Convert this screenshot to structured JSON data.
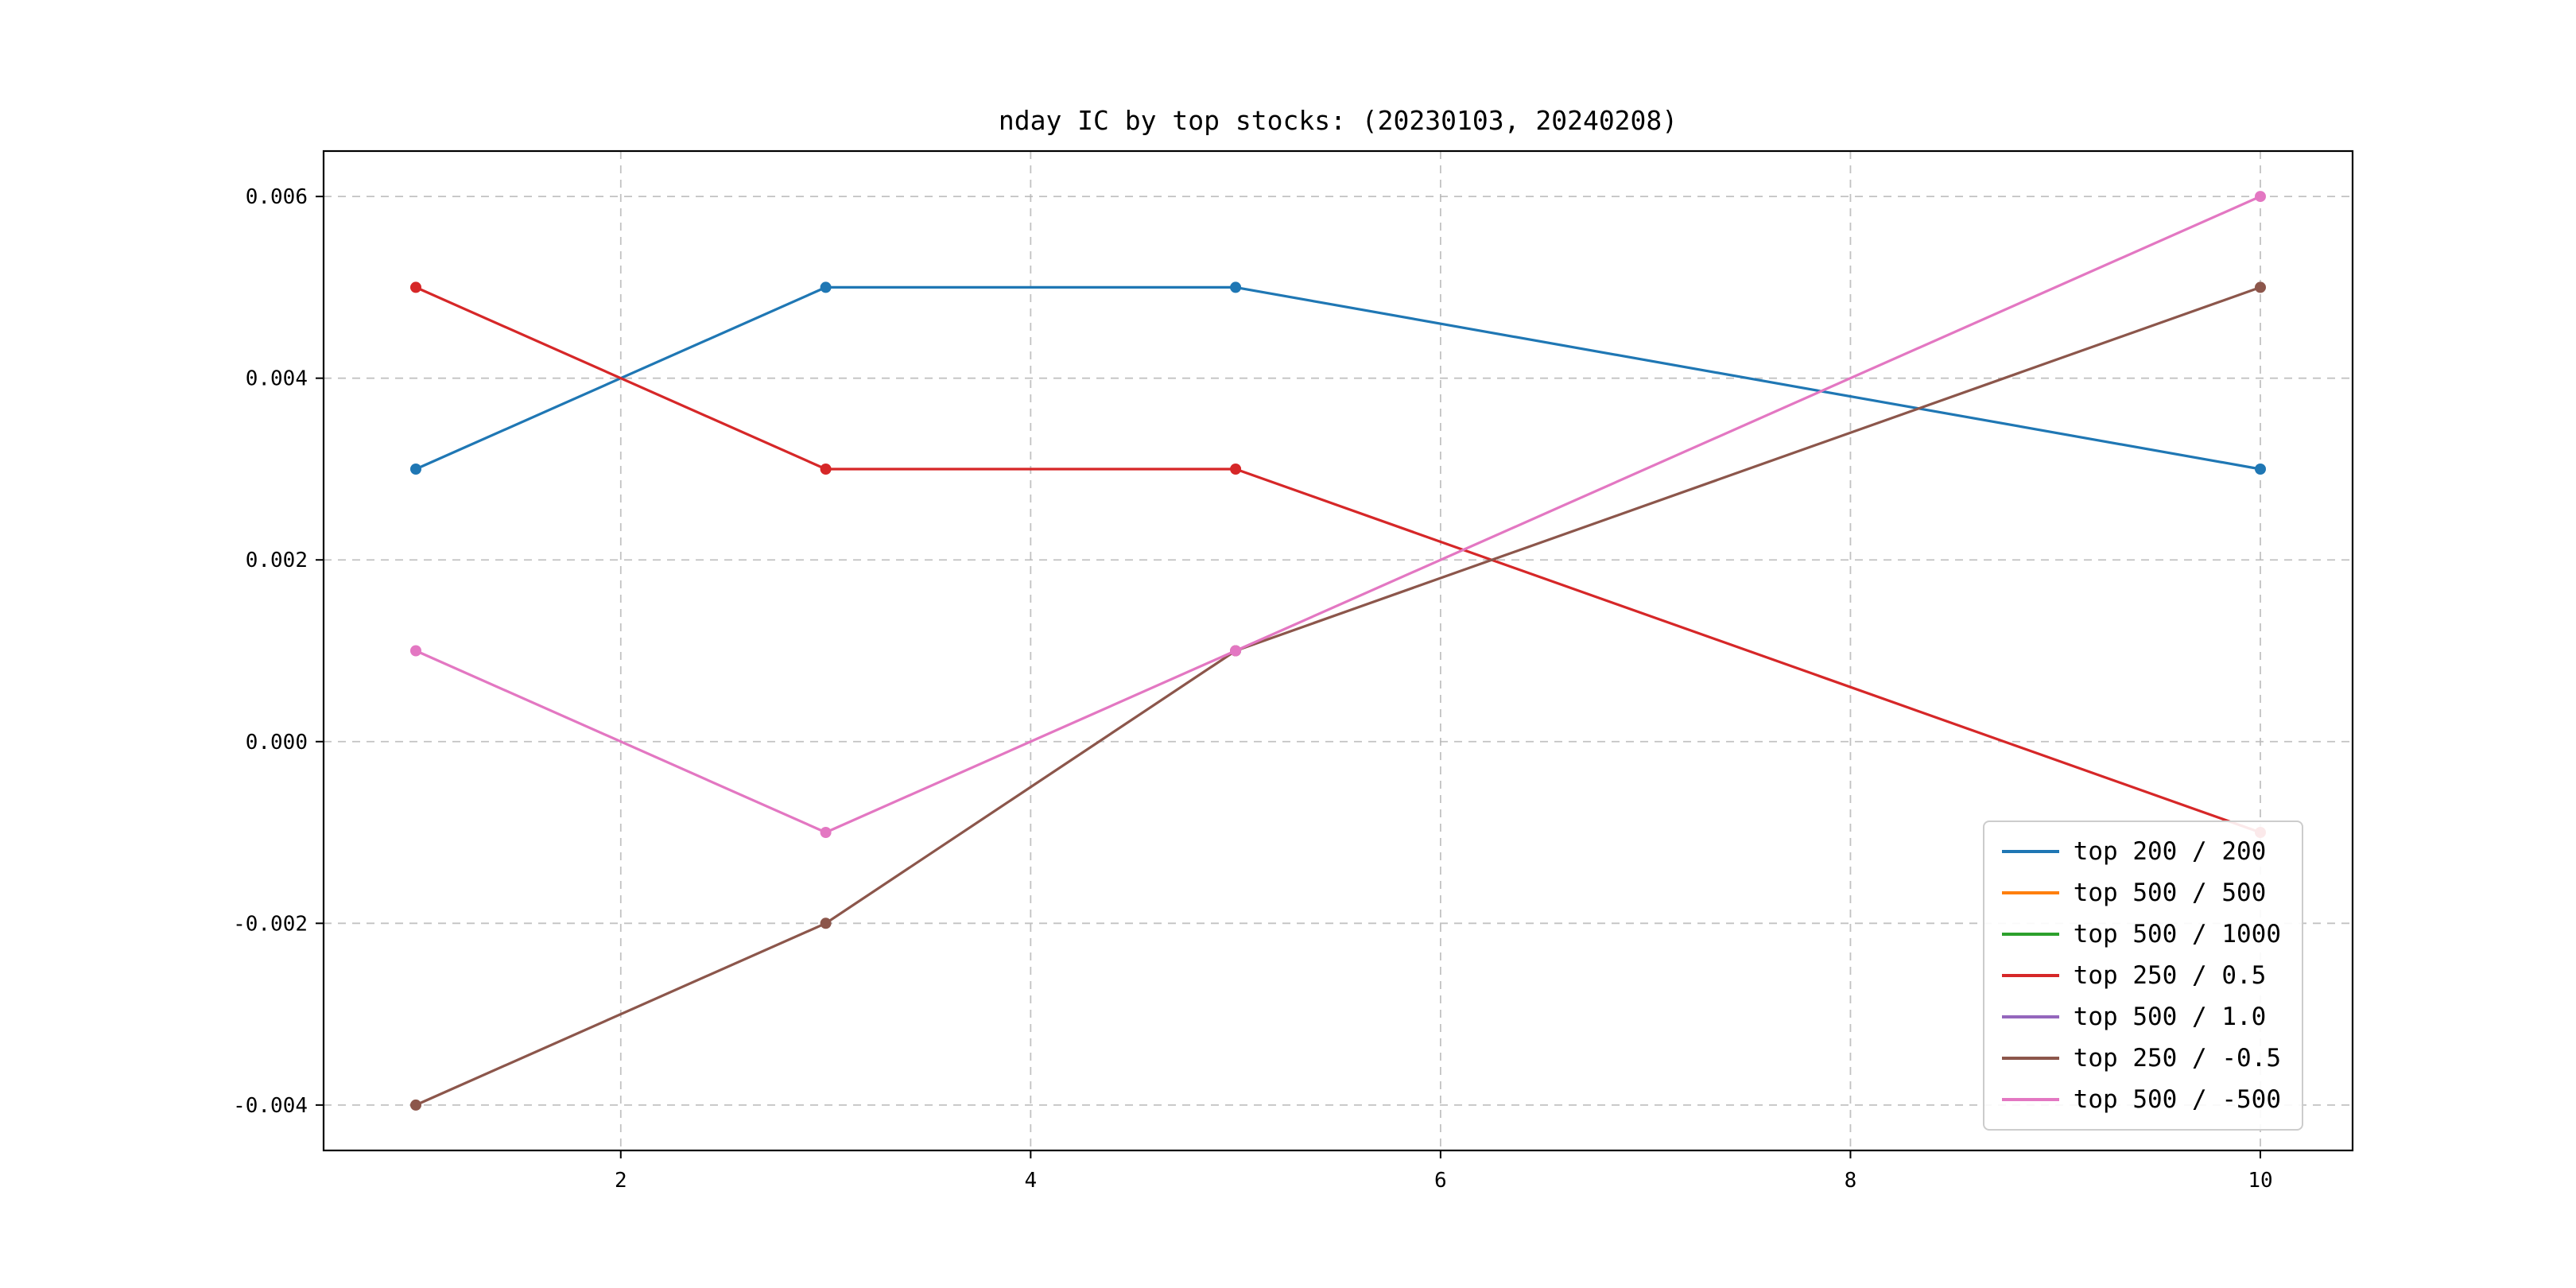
{
  "chart_data": {
    "type": "line",
    "title": "nday IC by top stocks: (20230103, 20240208)",
    "x": [
      1,
      3,
      5,
      10
    ],
    "series": [
      {
        "name": "top 200 / 200",
        "color": "#1f77b4",
        "values": [
          0.003,
          0.005,
          0.005,
          0.003
        ]
      },
      {
        "name": "top 500 / 500",
        "color": "#ff7f0e",
        "values": []
      },
      {
        "name": "top 500 / 1000",
        "color": "#2ca02c",
        "values": []
      },
      {
        "name": "top 250 / 0.5",
        "color": "#d62728",
        "values": [
          0.005,
          0.003,
          0.003,
          -0.001
        ]
      },
      {
        "name": "top 500 / 1.0",
        "color": "#9467bd",
        "values": []
      },
      {
        "name": "top 250 / -0.5",
        "color": "#8c564b",
        "values": [
          -0.004,
          -0.002,
          0.001,
          0.005
        ]
      },
      {
        "name": "top 500 / -500",
        "color": "#e377c2",
        "values": [
          0.001,
          -0.001,
          0.001,
          0.006
        ]
      }
    ],
    "xlim": [
      0.55,
      10.45
    ],
    "ylim": [
      -0.0045,
      0.0065
    ],
    "xticks": [
      2,
      4,
      6,
      8,
      10
    ],
    "xtick_labels": [
      "2",
      "4",
      "6",
      "8",
      "10"
    ],
    "yticks": [
      -0.004,
      -0.002,
      0.0,
      0.002,
      0.004,
      0.006
    ],
    "ytick_labels": [
      "-0.004",
      "-0.002",
      "0.000",
      "0.002",
      "0.004",
      "0.006"
    ],
    "grid": true,
    "legend_position": "lower right",
    "marker": "circle",
    "marker_radius": 7
  }
}
